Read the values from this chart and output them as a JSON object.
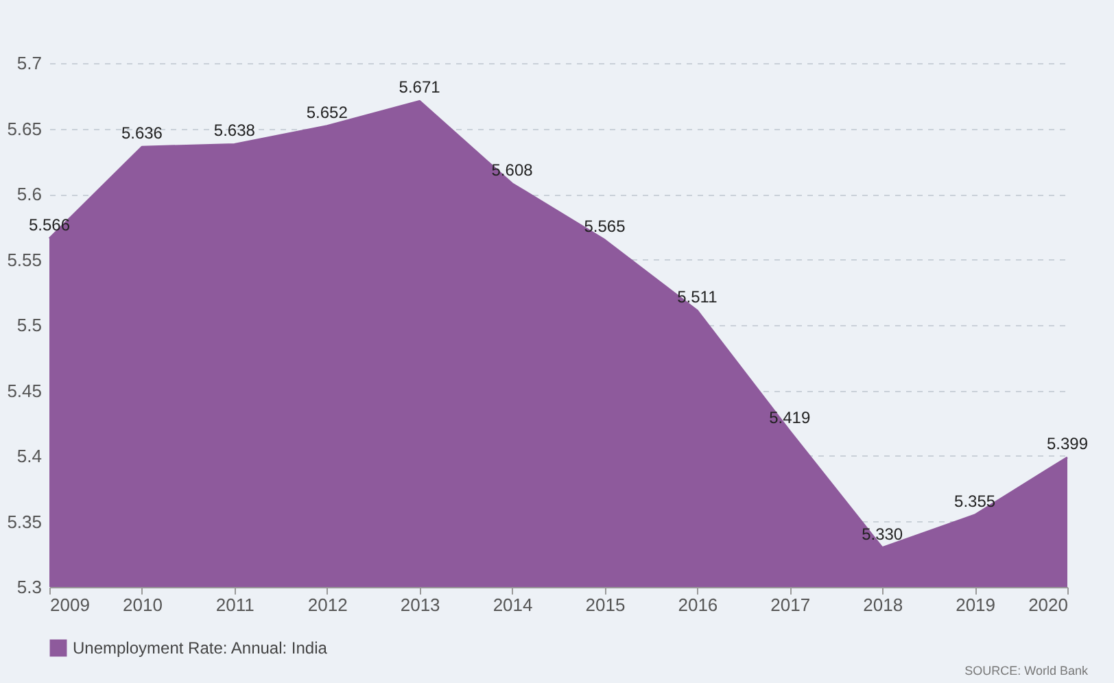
{
  "chart_data": {
    "type": "area",
    "categories": [
      "2009",
      "2010",
      "2011",
      "2012",
      "2013",
      "2014",
      "2015",
      "2016",
      "2017",
      "2018",
      "2019",
      "2020"
    ],
    "series": [
      {
        "name": "Unemployment Rate: Annual: India",
        "color": "#8e5a9c",
        "values": [
          5.566,
          5.636,
          5.638,
          5.652,
          5.671,
          5.608,
          5.565,
          5.511,
          5.419,
          5.33,
          5.355,
          5.399
        ],
        "value_labels": [
          "5.566",
          "5.636",
          "5.638",
          "5.652",
          "5.671",
          "5.608",
          "5.565",
          "5.511",
          "5.419",
          "5.330",
          "5.355",
          "5.399"
        ]
      }
    ],
    "ylim": [
      5.3,
      5.7
    ],
    "yticks": [
      5.3,
      5.35,
      5.4,
      5.45,
      5.5,
      5.55,
      5.6,
      5.65,
      5.7
    ],
    "grid": "y",
    "legend": "bottom",
    "annotations": [
      "SOURCE: World Bank"
    ]
  }
}
